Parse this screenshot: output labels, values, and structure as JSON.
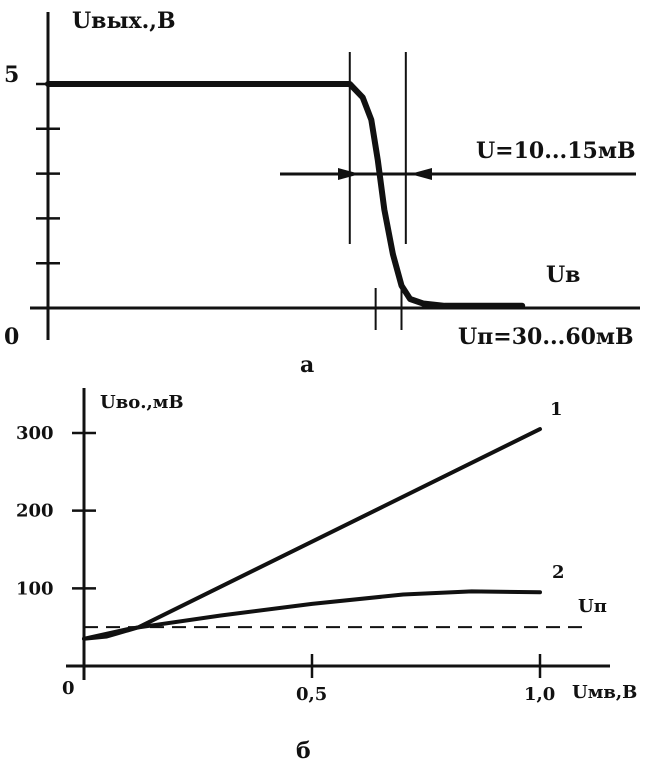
{
  "chart_data": [
    {
      "type": "line",
      "panel_label": "а",
      "ylabel": "Uвых.,В",
      "y_ticks": [
        {
          "value": 0,
          "label": "0"
        },
        {
          "value": 5,
          "label": "5"
        }
      ],
      "ylim": [
        0,
        6
      ],
      "minor_tick_step": 1,
      "x_unit": "мВ",
      "xlim": [
        0,
        135
      ],
      "series": [
        {
          "name": "Uв",
          "x": [
            0,
            70,
            73,
            75,
            76.5,
            78,
            80,
            82,
            84,
            87,
            92,
            110
          ],
          "y": [
            5,
            5,
            4.7,
            4.2,
            3.3,
            2.2,
            1.2,
            0.5,
            0.2,
            0.1,
            0.05,
            0.05
          ]
        }
      ],
      "annotations": {
        "threshold_width": "U=10...15мВ",
        "hysteresis_width": "Uп=30...60мВ"
      },
      "markers": {
        "threshold_x": [
          70,
          83
        ],
        "hysteresis_x": [
          76,
          82
        ]
      },
      "grid": false
    },
    {
      "type": "line",
      "panel_label": "б",
      "ylabel": "Uво.,мВ",
      "xlabel": "Uмв,В",
      "x_ticks": [
        {
          "value": 0,
          "label": "0"
        },
        {
          "value": 0.5,
          "label": "0,5"
        },
        {
          "value": 1.0,
          "label": "1,0"
        }
      ],
      "y_ticks": [
        {
          "value": 100,
          "label": "100"
        },
        {
          "value": 200,
          "label": "200"
        },
        {
          "value": 300,
          "label": "300"
        }
      ],
      "xlim": [
        0,
        1.15
      ],
      "ylim": [
        0,
        350
      ],
      "series": [
        {
          "name": "1",
          "x": [
            0,
            0.05,
            0.12,
            1.0
          ],
          "y": [
            35,
            38,
            50,
            305
          ]
        },
        {
          "name": "2",
          "x": [
            0,
            0.1,
            0.3,
            0.5,
            0.7,
            0.85,
            1.0
          ],
          "y": [
            35,
            48,
            65,
            80,
            92,
            96,
            95
          ]
        }
      ],
      "reference_line": {
        "name": "Uп",
        "y": 50
      },
      "grid": false
    }
  ]
}
